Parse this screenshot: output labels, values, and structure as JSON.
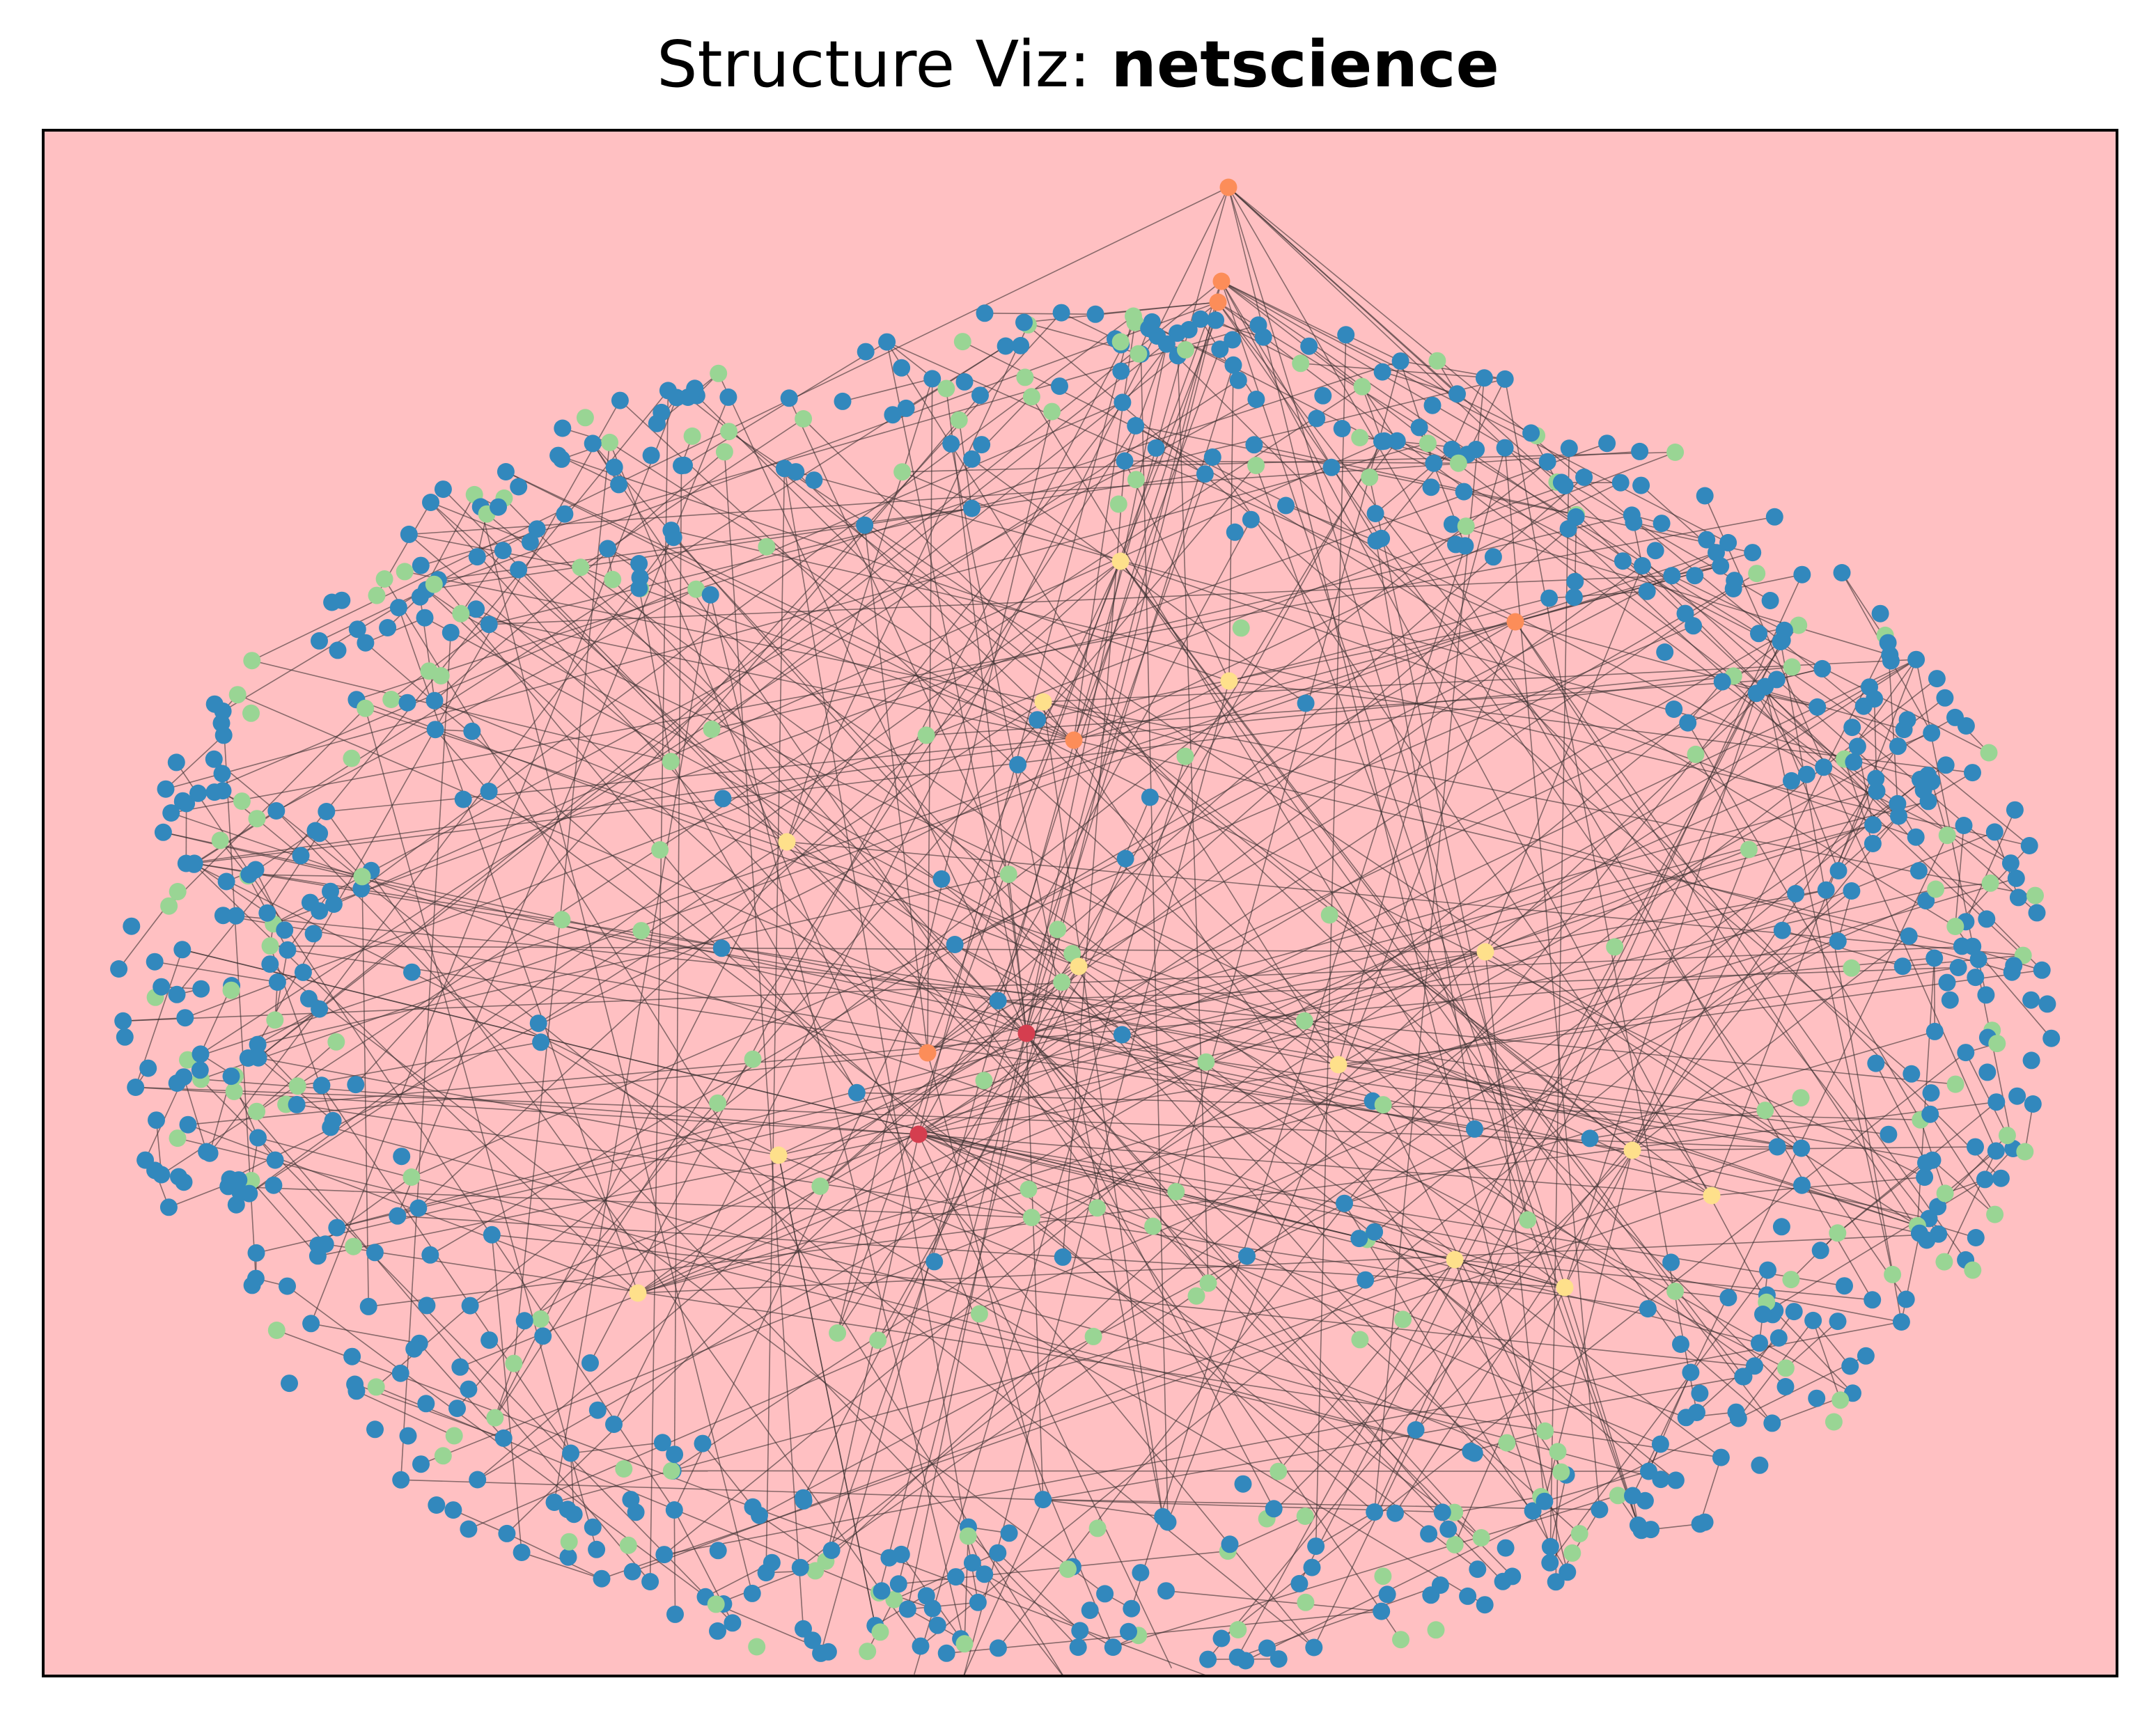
{
  "title": {
    "prefix": "Structure Viz: ",
    "name": "netscience"
  },
  "colors": {
    "background": "#ffc0c2",
    "frame": "#000000",
    "edge": "#3a3030",
    "node_classes": {
      "blue": "#3288bd",
      "green": "#99d594",
      "yellow": "#fee08b",
      "orange": "#fc8d59",
      "red": "#d53e4f"
    }
  }
}
